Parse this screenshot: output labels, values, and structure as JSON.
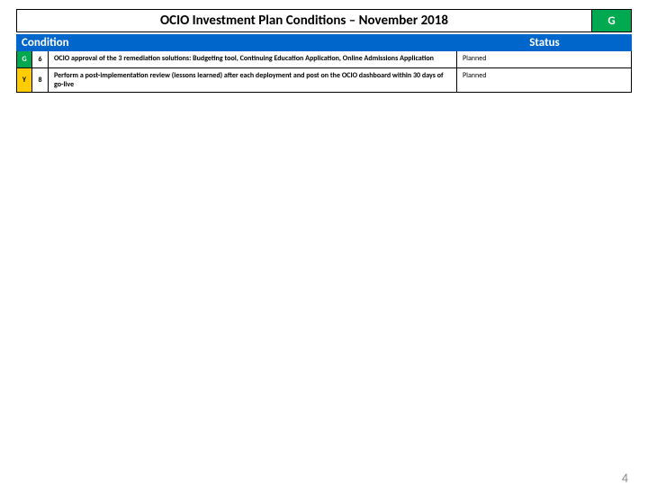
{
  "title": "OCIO Investment Plan Conditions – November 2018",
  "title_badge": {
    "label": "G",
    "bg": "#00a84f",
    "fg": "#ffffff"
  },
  "headers": {
    "condition": "Condition",
    "status": "Status"
  },
  "header_bg": "#0066cc",
  "header_fg": "#ffffff",
  "rag_colors": {
    "G": "#00a84f",
    "Y": "#ffcc00"
  },
  "rows": [
    {
      "rag": "G",
      "num": "6",
      "desc": "OCIO approval of the 3 remediation solutions: Budgeting tool, Continuing Education Application, Online Admissions Application",
      "status": "Planned"
    },
    {
      "rag": "Y",
      "num": "8",
      "desc": "Perform a post-implementation review (lessons learned) after each deployment and post on the OCIO dashboard within 30 days of go-live",
      "status": "Planned"
    }
  ],
  "page_number": "4",
  "fonts": {
    "title_size": 15,
    "header_size": 13,
    "body_size": 8
  }
}
